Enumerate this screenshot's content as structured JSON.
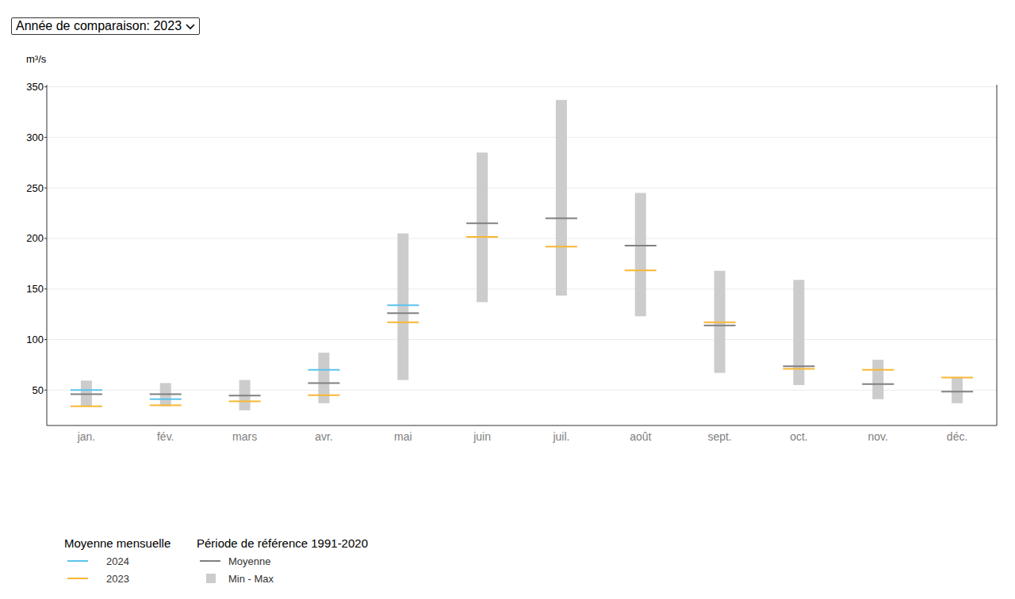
{
  "chart_data": {
    "type": "range",
    "dropdown_label": "Année de comparaison: 2023",
    "y_label": "m³/s",
    "categories": [
      "jan.",
      "fév.",
      "mars",
      "avr.",
      "mai",
      "juin",
      "juil.",
      "août",
      "sept.",
      "oct.",
      "nov.",
      "déc."
    ],
    "ylim": [
      15,
      352
    ],
    "yticks": [
      50,
      100,
      150,
      200,
      250,
      300,
      350
    ],
    "grid": true,
    "legend": "bottom-left",
    "legend_titles": [
      "Moyenne mensuelle",
      "Période de référence 1991-2020"
    ],
    "series": [
      {
        "name": "2024",
        "type": "dash",
        "group": 0,
        "color": "#5bc3ec",
        "values": [
          50,
          41,
          null,
          70,
          134,
          null,
          null,
          null,
          null,
          null,
          null,
          null
        ]
      },
      {
        "name": "2023",
        "type": "dash",
        "group": 0,
        "color": "#f8b733",
        "values": [
          34,
          35,
          39,
          45,
          117,
          201.5,
          192,
          168.5,
          117,
          71,
          70,
          62.5
        ]
      },
      {
        "name": "Moyenne",
        "type": "dash",
        "group": 1,
        "color": "#808080",
        "values": [
          46,
          46,
          44.5,
          57,
          126,
          215,
          220,
          193,
          114,
          73.5,
          56,
          48.5
        ]
      },
      {
        "name": "Min - Max",
        "type": "range",
        "group": 1,
        "color": "#cccccc",
        "low": [
          34.3,
          34,
          30,
          37,
          60,
          137,
          143.5,
          123,
          67,
          55,
          41,
          37
        ],
        "high": [
          59.4,
          57,
          60,
          87,
          205,
          285,
          337,
          245,
          168,
          159,
          80,
          63
        ]
      }
    ]
  }
}
